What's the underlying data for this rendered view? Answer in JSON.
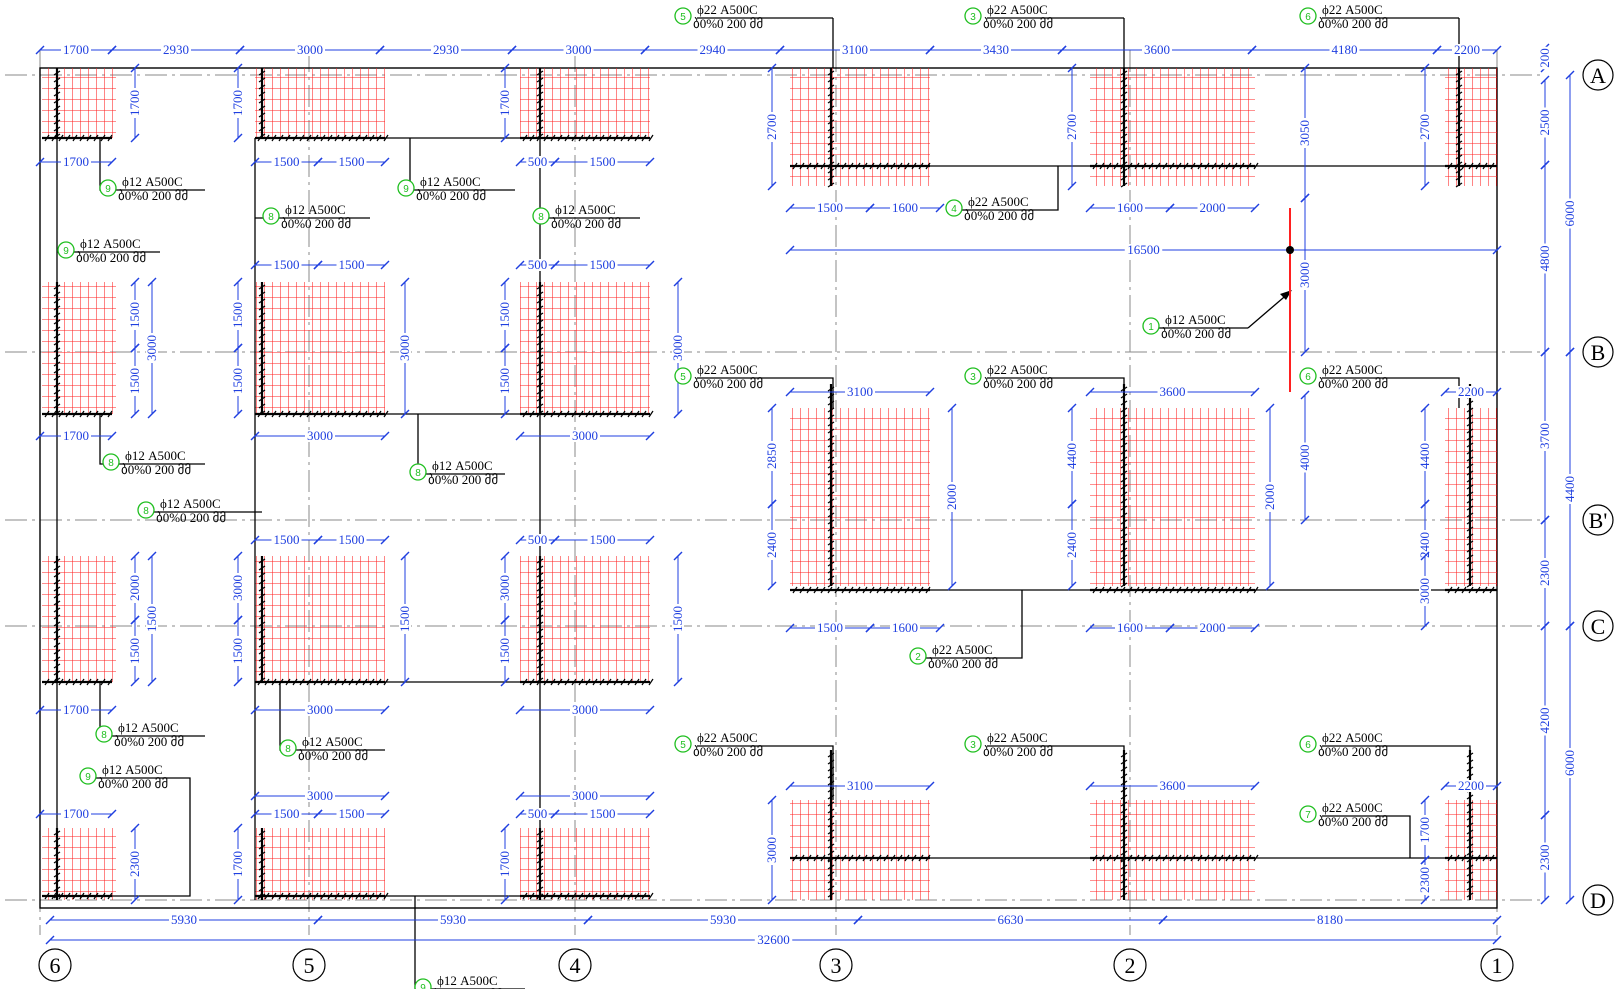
{
  "axes": {
    "vertical": [
      {
        "id": "ax-6",
        "label": "6",
        "x": 40
      },
      {
        "id": "ax-5",
        "label": "5",
        "x": 309
      },
      {
        "id": "ax-4",
        "label": "4",
        "x": 575
      },
      {
        "id": "ax-3",
        "label": "3",
        "x": 836
      },
      {
        "id": "ax-2",
        "label": "2",
        "x": 1130
      },
      {
        "id": "ax-1",
        "label": "1",
        "x": 1497
      }
    ],
    "horizontal": [
      {
        "id": "ax-A",
        "label": "A",
        "y": 75
      },
      {
        "id": "ax-B",
        "label": "B",
        "y": 352
      },
      {
        "id": "ax-Bp",
        "label": "B'",
        "y": 520
      },
      {
        "id": "ax-C",
        "label": "C",
        "y": 626
      },
      {
        "id": "ax-D",
        "label": "D",
        "y": 900
      }
    ]
  },
  "top_dims": [
    "1700",
    "2930",
    "3000",
    "2930",
    "3000",
    "2940",
    "3100",
    "3430",
    "3600",
    "4180",
    "2200"
  ],
  "bottom_dims": [
    "5930",
    "5930",
    "5930",
    "6630",
    "8180"
  ],
  "overall_bottom": "32600",
  "right_dims": {
    "outer": [
      "6000",
      "4400",
      "6000"
    ],
    "inner": [
      "2500",
      "4800",
      "3700",
      "2300",
      "4200",
      "2300"
    ],
    "top": "200"
  },
  "inner_dims": {
    "h": [
      "1700",
      "1500",
      "1500",
      "500",
      "1500",
      "1500",
      "1600",
      "1600",
      "2000",
      "1500",
      "1500",
      "500",
      "1500",
      "1700",
      "3000",
      "3000",
      "1500",
      "1500",
      "500",
      "1500",
      "3100",
      "3600",
      "2200",
      "1500",
      "1600",
      "1600",
      "2000",
      "1700",
      "3000",
      "3000",
      "3000",
      "3000",
      "1700",
      "1500",
      "1500",
      "500",
      "1500",
      "3100",
      "3600",
      "2200"
    ],
    "v": [
      "1700",
      "1700",
      "1700",
      "2700",
      "2700",
      "2700",
      "3050",
      "1500",
      "1500",
      "3000",
      "1500",
      "1500",
      "3000",
      "1500",
      "1500",
      "3000",
      "3000",
      "4000",
      "2850",
      "2400",
      "2000",
      "4400",
      "2400",
      "2000",
      "4400",
      "2400",
      "2000",
      "1500",
      "1500",
      "3000",
      "1500",
      "1500",
      "3000",
      "1500",
      "1500",
      "3000",
      "3000",
      "2300",
      "1700",
      "1700",
      "1700",
      "2300"
    ]
  },
  "long_dim": "16500",
  "labels": [
    {
      "num": "5",
      "spec": "ϕ22 A500C",
      "sub": "ბ0%0 200 მმ"
    },
    {
      "num": "3",
      "spec": "ϕ22 A500C",
      "sub": "ბ0%0 200 მმ"
    },
    {
      "num": "6",
      "spec": "ϕ22 A500C",
      "sub": "ბ0%0 200 მმ"
    },
    {
      "num": "9",
      "spec": "ϕ12 A500C",
      "sub": "ბ0%0 200 მმ"
    },
    {
      "num": "9",
      "spec": "ϕ12 A500C",
      "sub": "ბ0%0 200 მმ"
    },
    {
      "num": "8",
      "spec": "ϕ12 A500C",
      "sub": "ბ0%0 200 მმ"
    },
    {
      "num": "8",
      "spec": "ϕ12 A500C",
      "sub": "ბ0%0 200 მმ"
    },
    {
      "num": "4",
      "spec": "ϕ22 A500C",
      "sub": "ბ0%0 200 მმ"
    },
    {
      "num": "9",
      "spec": "ϕ12 A500C",
      "sub": "ბ0%0 200 მმ"
    },
    {
      "num": "1",
      "spec": "ϕ12 A500C",
      "sub": "ბ0%0 200 მმ"
    },
    {
      "num": "5",
      "spec": "ϕ22 A500C",
      "sub": "ბ0%0 200 მმ"
    },
    {
      "num": "3",
      "spec": "ϕ22 A500C",
      "sub": "ბ0%0 200 მმ"
    },
    {
      "num": "6",
      "spec": "ϕ22 A500C",
      "sub": "ბ0%0 200 მმ"
    },
    {
      "num": "8",
      "spec": "ϕ12 A500C",
      "sub": "ბ0%0 200 მმ"
    },
    {
      "num": "8",
      "spec": "ϕ12 A500C",
      "sub": "ბ0%0 200 მმ"
    },
    {
      "num": "8",
      "spec": "ϕ12 A500C",
      "sub": "ბ0%0 200 მმ"
    },
    {
      "num": "2",
      "spec": "ϕ22 A500C",
      "sub": "ბ0%0 200 მმ"
    },
    {
      "num": "8",
      "spec": "ϕ12 A500C",
      "sub": "ბ0%0 200 მმ"
    },
    {
      "num": "8",
      "spec": "ϕ12 A500C",
      "sub": "ბ0%0 200 მმ"
    },
    {
      "num": "5",
      "spec": "ϕ22 A500C",
      "sub": "ბ0%0 200 მმ"
    },
    {
      "num": "3",
      "spec": "ϕ22 A500C",
      "sub": "ბ0%0 200 მმ"
    },
    {
      "num": "6",
      "spec": "ϕ22 A500C",
      "sub": "ბ0%0 200 მმ"
    },
    {
      "num": "9",
      "spec": "ϕ12 A500C",
      "sub": "ბ0%0 200 მმ"
    },
    {
      "num": "7",
      "spec": "ϕ22 A500C",
      "sub": "ბ0%0 200 მმ"
    },
    {
      "num": "9",
      "spec": "ϕ12 A500C",
      "sub": "ბ0%0 200 მმ"
    }
  ],
  "colors": {
    "dimension": "#1f3fe0",
    "mesh": "#ff2020",
    "leader": "#000000",
    "callout": "#1fbf1f",
    "axis": "#8a8a8a"
  }
}
